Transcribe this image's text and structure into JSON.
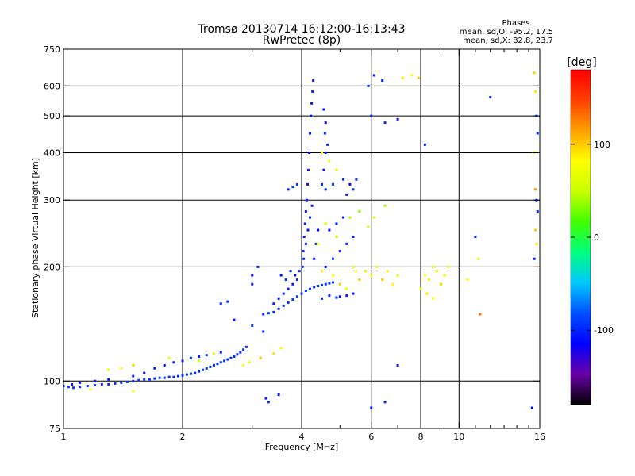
{
  "chart_data": {
    "type": "scatter",
    "title": "Tromsø 20130714 16:12:00-16:13:43",
    "subtitle": "RwPretec (8p)",
    "xlabel": "Frequency [MHz]",
    "ylabel": "Stationary phase Virtual Height [km]",
    "xscale": "log",
    "yscale": "log",
    "xlim": [
      1,
      16
    ],
    "ylim": [
      75,
      750
    ],
    "xticks": [
      1,
      2,
      4,
      6,
      8,
      10,
      16
    ],
    "xtick_labels": [
      "1",
      "2",
      "4",
      "6",
      "8",
      "10",
      "16"
    ],
    "xgrid": [
      2,
      4,
      6,
      8,
      10
    ],
    "yticks": [
      75,
      100,
      200,
      300,
      400,
      500,
      600,
      750
    ],
    "ytick_labels": [
      "75",
      "100",
      "200",
      "300",
      "400",
      "500",
      "600",
      "750"
    ],
    "ygrid": [
      100,
      200,
      300,
      400,
      500,
      600
    ],
    "grid": true,
    "annotation": {
      "heading": "Phases",
      "line1": "mean, sd,O: -95.2, 17.5",
      "line2": "mean, sd,X: 82.8, 23.7"
    },
    "colorbar": {
      "label": "[deg]",
      "range": [
        -180,
        180
      ],
      "ticks": [
        100,
        0,
        -100
      ],
      "tick_labels": [
        "100",
        "0",
        "-100"
      ],
      "colors": [
        "#000000",
        "#6a00a8",
        "#0000ff",
        "#0050ff",
        "#00c8ff",
        "#00ff80",
        "#40ff00",
        "#c8ff00",
        "#ffff00",
        "#ffa000",
        "#ff4000",
        "#ff0000"
      ]
    },
    "series": [
      {
        "points": [
          [
            1.0,
            97,
            -95
          ],
          [
            1.03,
            96.5,
            -95
          ],
          [
            1.06,
            96,
            -95
          ],
          [
            1.1,
            96.5,
            -95
          ],
          [
            1.15,
            97,
            -95
          ],
          [
            1.2,
            97.5,
            -95
          ],
          [
            1.25,
            98,
            -95
          ],
          [
            1.3,
            98,
            -95
          ],
          [
            1.35,
            98.5,
            -95
          ],
          [
            1.4,
            99,
            -95
          ],
          [
            1.45,
            99.5,
            -95
          ],
          [
            1.5,
            100,
            -95
          ],
          [
            1.55,
            100.5,
            -95
          ],
          [
            1.6,
            101,
            -95
          ],
          [
            1.65,
            101,
            -95
          ],
          [
            1.7,
            101.5,
            -95
          ],
          [
            1.75,
            102,
            -95
          ],
          [
            1.8,
            102,
            -95
          ],
          [
            1.85,
            102.5,
            -95
          ],
          [
            1.9,
            102.5,
            -95
          ],
          [
            1.95,
            103,
            -95
          ],
          [
            2.0,
            103.5,
            -95
          ],
          [
            2.05,
            104,
            -95
          ],
          [
            2.1,
            104.5,
            -95
          ],
          [
            2.15,
            105,
            -95
          ],
          [
            2.2,
            106,
            -95
          ],
          [
            2.25,
            107,
            -95
          ],
          [
            2.3,
            108,
            -95
          ],
          [
            2.35,
            109,
            -95
          ],
          [
            2.4,
            110,
            -95
          ],
          [
            2.45,
            111,
            -95
          ],
          [
            2.5,
            112,
            -95
          ],
          [
            2.55,
            113,
            -95
          ],
          [
            2.6,
            114,
            -95
          ],
          [
            2.65,
            115,
            -95
          ],
          [
            2.7,
            116,
            -95
          ],
          [
            2.75,
            117.5,
            -95
          ],
          [
            2.8,
            119,
            -95
          ],
          [
            2.85,
            121,
            -95
          ],
          [
            2.9,
            123,
            -95
          ],
          [
            1.05,
            98,
            -110
          ],
          [
            1.1,
            99,
            -110
          ],
          [
            1.2,
            100,
            -105
          ],
          [
            1.3,
            101,
            -110
          ],
          [
            1.5,
            103,
            -100
          ],
          [
            1.6,
            105,
            -110
          ],
          [
            1.7,
            108,
            -100
          ],
          [
            1.8,
            110,
            -105
          ],
          [
            1.9,
            112,
            -95
          ],
          [
            2.0,
            113,
            -100
          ],
          [
            2.1,
            115,
            -90
          ],
          [
            2.2,
            116,
            -105
          ],
          [
            2.3,
            117,
            -95
          ],
          [
            2.5,
            119,
            -100
          ],
          [
            1.3,
            107,
            60
          ],
          [
            1.4,
            108,
            85
          ],
          [
            1.5,
            110,
            100
          ],
          [
            1.85,
            115,
            70
          ],
          [
            2.2,
            113,
            60
          ],
          [
            1.17,
            95,
            80
          ],
          [
            1.5,
            94,
            75
          ],
          [
            2.4,
            118,
            55
          ],
          [
            3.2,
            150,
            -95
          ],
          [
            3.3,
            151,
            -95
          ],
          [
            3.4,
            152,
            -95
          ],
          [
            3.5,
            155,
            -95
          ],
          [
            3.6,
            158,
            -95
          ],
          [
            3.7,
            161,
            -95
          ],
          [
            3.8,
            164,
            -95
          ],
          [
            3.9,
            167,
            -95
          ],
          [
            4.0,
            170,
            -95
          ],
          [
            4.1,
            173,
            -95
          ],
          [
            4.2,
            175,
            -95
          ],
          [
            4.3,
            177,
            -95
          ],
          [
            4.4,
            178,
            -95
          ],
          [
            4.5,
            179,
            -95
          ],
          [
            4.6,
            180,
            -95
          ],
          [
            4.7,
            181,
            -95
          ],
          [
            4.8,
            182,
            -95
          ],
          [
            3.4,
            160,
            -100
          ],
          [
            3.5,
            165,
            -105
          ],
          [
            3.6,
            170,
            -110
          ],
          [
            3.7,
            175,
            -100
          ],
          [
            3.8,
            180,
            -105
          ],
          [
            3.9,
            185,
            -100
          ],
          [
            3.55,
            190,
            -110
          ],
          [
            3.65,
            185,
            -95
          ],
          [
            3.75,
            195,
            -100
          ],
          [
            3.85,
            190,
            -110
          ],
          [
            3.95,
            195,
            -100
          ],
          [
            4.02,
            200,
            -100
          ],
          [
            4.04,
            220,
            -100
          ],
          [
            4.06,
            240,
            -105
          ],
          [
            4.08,
            260,
            -100
          ],
          [
            4.1,
            280,
            -110
          ],
          [
            4.12,
            300,
            -100
          ],
          [
            4.14,
            330,
            -105
          ],
          [
            4.16,
            360,
            -100
          ],
          [
            4.18,
            400,
            -110
          ],
          [
            4.2,
            450,
            -100
          ],
          [
            4.22,
            500,
            -105
          ],
          [
            4.24,
            540,
            -110
          ],
          [
            4.26,
            580,
            -100
          ],
          [
            4.28,
            620,
            -105
          ],
          [
            4.05,
            210,
            -95
          ],
          [
            4.1,
            230,
            -100
          ],
          [
            4.15,
            250,
            -110
          ],
          [
            4.2,
            270,
            -100
          ],
          [
            4.25,
            290,
            -105
          ],
          [
            4.3,
            210,
            -100
          ],
          [
            4.35,
            230,
            -95
          ],
          [
            4.4,
            250,
            -110
          ],
          [
            4.5,
            330,
            -100
          ],
          [
            4.55,
            360,
            -105
          ],
          [
            4.6,
            400,
            -100
          ],
          [
            4.65,
            420,
            -95
          ],
          [
            4.6,
            480,
            -110
          ],
          [
            4.58,
            450,
            -100
          ],
          [
            4.55,
            520,
            -105
          ],
          [
            4.5,
            165,
            -100
          ],
          [
            4.7,
            168,
            -95
          ],
          [
            4.9,
            166,
            -100
          ],
          [
            5.0,
            167,
            -105
          ],
          [
            5.2,
            168,
            -100
          ],
          [
            5.4,
            170,
            -110
          ],
          [
            4.6,
            200,
            -100
          ],
          [
            4.8,
            210,
            -90
          ],
          [
            5.0,
            220,
            -100
          ],
          [
            5.2,
            230,
            -95
          ],
          [
            5.4,
            240,
            -100
          ],
          [
            4.7,
            250,
            -110
          ],
          [
            4.9,
            260,
            -100
          ],
          [
            5.1,
            270,
            -105
          ],
          [
            4.6,
            320,
            -100
          ],
          [
            4.8,
            330,
            -90
          ],
          [
            5.1,
            340,
            -100
          ],
          [
            5.3,
            330,
            -110
          ],
          [
            5.5,
            340,
            -100
          ],
          [
            5.4,
            320,
            -95
          ],
          [
            5.2,
            310,
            -105
          ],
          [
            3.7,
            320,
            -100
          ],
          [
            3.8,
            325,
            -90
          ],
          [
            3.9,
            330,
            -95
          ],
          [
            2.85,
            110,
            85
          ],
          [
            2.95,
            112,
            70
          ],
          [
            3.15,
            115,
            100
          ],
          [
            3.4,
            118,
            95
          ],
          [
            3.55,
            122,
            80
          ],
          [
            3.0,
            140,
            -95
          ],
          [
            3.2,
            135,
            -100
          ],
          [
            2.7,
            145,
            -105
          ],
          [
            2.5,
            160,
            -100
          ],
          [
            2.6,
            162,
            -95
          ],
          [
            3.0,
            180,
            -100
          ],
          [
            3.0,
            190,
            -110
          ],
          [
            3.1,
            200,
            -100
          ],
          [
            3.25,
            90,
            -100
          ],
          [
            3.3,
            88,
            -95
          ],
          [
            3.5,
            92,
            -110
          ],
          [
            4.5,
            195,
            90
          ],
          [
            4.8,
            190,
            80
          ],
          [
            5.0,
            180,
            100
          ],
          [
            5.2,
            175,
            70
          ],
          [
            5.4,
            200,
            60
          ],
          [
            5.5,
            195,
            85
          ],
          [
            5.6,
            185,
            100
          ],
          [
            5.8,
            195,
            90
          ],
          [
            6.0,
            190,
            80
          ],
          [
            6.2,
            200,
            70
          ],
          [
            6.4,
            185,
            100
          ],
          [
            6.6,
            195,
            90
          ],
          [
            6.8,
            180,
            85
          ],
          [
            7.0,
            190,
            60
          ],
          [
            4.4,
            230,
            70
          ],
          [
            4.6,
            260,
            60
          ],
          [
            4.9,
            240,
            50
          ],
          [
            5.3,
            270,
            40
          ],
          [
            5.6,
            280,
            30
          ],
          [
            5.9,
            255,
            50
          ],
          [
            6.1,
            270,
            60
          ],
          [
            6.5,
            290,
            40
          ],
          [
            8.2,
            190,
            80
          ],
          [
            8.4,
            185,
            90
          ],
          [
            8.6,
            200,
            70
          ],
          [
            8.8,
            195,
            60
          ],
          [
            9.0,
            180,
            100
          ],
          [
            9.2,
            190,
            85
          ],
          [
            9.4,
            200,
            65
          ],
          [
            8.0,
            175,
            70
          ],
          [
            8.3,
            170,
            90
          ],
          [
            8.6,
            165,
            80
          ],
          [
            10.5,
            185,
            80
          ],
          [
            11.0,
            240,
            -100
          ],
          [
            11.2,
            210,
            60
          ],
          [
            6.0,
            500,
            -100
          ],
          [
            6.5,
            480,
            -95
          ],
          [
            7.0,
            490,
            -110
          ],
          [
            7.6,
            640,
            80
          ],
          [
            7.9,
            630,
            100
          ],
          [
            8.2,
            420,
            -100
          ],
          [
            6.4,
            620,
            -100
          ],
          [
            6.1,
            640,
            -100
          ],
          [
            5.9,
            600,
            -95
          ],
          [
            6.5,
            88,
            -100
          ],
          [
            7.0,
            110,
            -110
          ],
          [
            6.0,
            85,
            -105
          ],
          [
            4.5,
            400,
            80
          ],
          [
            4.7,
            380,
            70
          ],
          [
            4.9,
            360,
            90
          ],
          [
            15.5,
            650,
            100
          ],
          [
            15.6,
            580,
            90
          ],
          [
            15.7,
            500,
            -100
          ],
          [
            15.8,
            450,
            -95
          ],
          [
            15.5,
            400,
            80
          ],
          [
            15.6,
            320,
            120
          ],
          [
            15.7,
            300,
            -100
          ],
          [
            15.8,
            280,
            -95
          ],
          [
            15.6,
            250,
            100
          ],
          [
            15.7,
            230,
            90
          ],
          [
            15.5,
            210,
            -100
          ],
          [
            15.3,
            85,
            -110
          ],
          [
            12.0,
            560,
            -100
          ],
          [
            11.3,
            150,
            130
          ],
          [
            7.2,
            630,
            90
          ]
        ]
      }
    ]
  }
}
